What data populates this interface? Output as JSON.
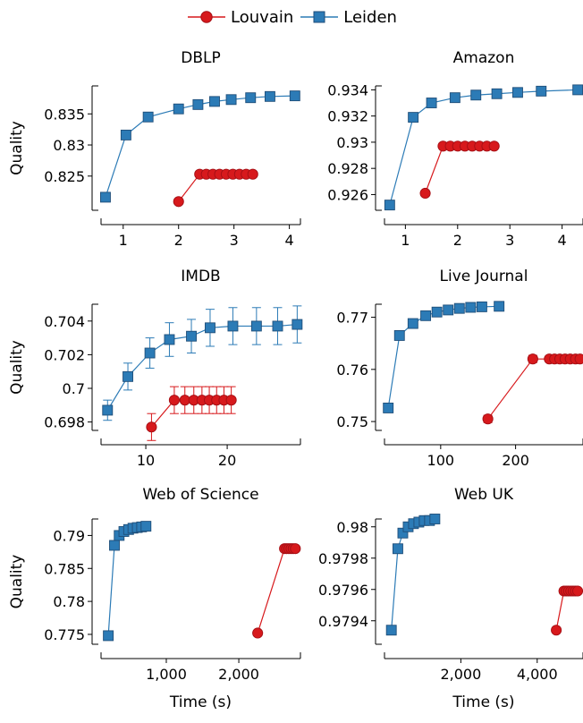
{
  "legend": [
    {
      "name": "Louvain",
      "color": "#d7191c",
      "marker": "circle"
    },
    {
      "name": "Leiden",
      "color": "#2c7bb6",
      "marker": "square"
    }
  ],
  "chart_data": [
    {
      "type": "line",
      "title": "DBLP",
      "ylabel": "Quality",
      "xlabel": "",
      "xlim": [
        0.6,
        4.2
      ],
      "ylim": [
        0.8195,
        0.8395
      ],
      "xticks": [
        1,
        2,
        3,
        4
      ],
      "xtick_labels": [
        "1",
        "2",
        "3",
        "4"
      ],
      "yticks": [
        0.825,
        0.83,
        0.835
      ],
      "ytick_labels": [
        "0.825",
        "0.83",
        "0.835"
      ],
      "series": [
        {
          "name": "Louvain",
          "x": [
            2.0,
            2.38,
            2.5,
            2.62,
            2.74,
            2.86,
            2.98,
            3.1,
            3.22,
            3.34
          ],
          "y": [
            0.8209,
            0.8253,
            0.8253,
            0.8253,
            0.8253,
            0.8253,
            0.8253,
            0.8253,
            0.8253,
            0.8253
          ]
        },
        {
          "name": "Leiden",
          "x": [
            0.68,
            1.05,
            1.45,
            2.0,
            2.35,
            2.65,
            2.95,
            3.3,
            3.65,
            4.1
          ],
          "y": [
            0.8216,
            0.8316,
            0.8345,
            0.8358,
            0.8365,
            0.837,
            0.8373,
            0.8376,
            0.8378,
            0.8379
          ]
        }
      ]
    },
    {
      "type": "line",
      "title": "Amazon",
      "ylabel": "",
      "xlabel": "",
      "xlim": [
        0.6,
        4.4
      ],
      "ylim": [
        0.9248,
        0.9343
      ],
      "xticks": [
        1,
        2,
        3,
        4
      ],
      "xtick_labels": [
        "1",
        "2",
        "3",
        "4"
      ],
      "yticks": [
        0.926,
        0.928,
        0.93,
        0.932,
        0.934
      ],
      "ytick_labels": [
        "0.926",
        "0.928",
        "0.93",
        "0.932",
        "0.934"
      ],
      "series": [
        {
          "name": "Louvain",
          "x": [
            1.38,
            1.72,
            1.86,
            2.0,
            2.14,
            2.28,
            2.42,
            2.56,
            2.7
          ],
          "y": [
            0.9261,
            0.9297,
            0.9297,
            0.9297,
            0.9297,
            0.9297,
            0.9297,
            0.9297,
            0.9297
          ]
        },
        {
          "name": "Leiden",
          "x": [
            0.7,
            1.15,
            1.5,
            1.95,
            2.35,
            2.75,
            3.15,
            3.6,
            4.3
          ],
          "y": [
            0.9252,
            0.9319,
            0.933,
            0.9334,
            0.9336,
            0.9337,
            0.9338,
            0.9339,
            0.934
          ]
        }
      ]
    },
    {
      "type": "line",
      "title": "IMDB",
      "ylabel": "Quality",
      "xlabel": "",
      "xlim": [
        4.5,
        29.0
      ],
      "ylim": [
        0.6975,
        0.705
      ],
      "xticks": [
        10,
        20
      ],
      "xtick_labels": [
        "10",
        "20"
      ],
      "yticks": [
        0.698,
        0.7,
        0.702,
        0.704
      ],
      "ytick_labels": [
        "0.698",
        "0.7",
        "0.702",
        "0.704"
      ],
      "series": [
        {
          "name": "Louvain",
          "x": [
            10.7,
            13.5,
            14.8,
            15.9,
            16.9,
            17.8,
            18.7,
            19.6,
            20.5
          ],
          "y": [
            0.6977,
            0.6993,
            0.6993,
            0.6993,
            0.6993,
            0.6993,
            0.6993,
            0.6993,
            0.6993
          ],
          "err": [
            0.0008,
            0.0008,
            0.0008,
            0.0008,
            0.0008,
            0.0008,
            0.0008,
            0.0008,
            0.0008
          ]
        },
        {
          "name": "Leiden",
          "x": [
            5.3,
            7.8,
            10.5,
            12.9,
            15.6,
            17.9,
            20.7,
            23.6,
            26.2,
            28.6
          ],
          "y": [
            0.6987,
            0.7007,
            0.7021,
            0.7029,
            0.7031,
            0.7036,
            0.7037,
            0.7037,
            0.7037,
            0.7038
          ],
          "err": [
            0.0006,
            0.0008,
            0.0009,
            0.001,
            0.001,
            0.0011,
            0.0011,
            0.0011,
            0.0011,
            0.0011
          ]
        }
      ]
    },
    {
      "type": "line",
      "title": "Live Journal",
      "ylabel": "",
      "xlabel": "",
      "xlim": [
        25,
        290
      ],
      "ylim": [
        0.7483,
        0.7725
      ],
      "xticks": [
        100,
        200
      ],
      "xtick_labels": [
        "100",
        "200"
      ],
      "yticks": [
        0.75,
        0.76,
        0.77
      ],
      "ytick_labels": [
        "0.75",
        "0.76",
        "0.77"
      ],
      "series": [
        {
          "name": "Louvain",
          "x": [
            163,
            223,
            245,
            252,
            259,
            266,
            273,
            280,
            286
          ],
          "y": [
            0.7505,
            0.762,
            0.762,
            0.762,
            0.762,
            0.762,
            0.762,
            0.762,
            0.762
          ],
          "err": [
            0.0007,
            0.0007,
            0.0005,
            0.0005,
            0.0005,
            0.0005,
            0.0005,
            0.0005,
            0.0005
          ]
        },
        {
          "name": "Leiden",
          "x": [
            30,
            45,
            63,
            80,
            95,
            110,
            125,
            140,
            155,
            178
          ],
          "y": [
            0.7526,
            0.7665,
            0.7688,
            0.7703,
            0.771,
            0.7714,
            0.7717,
            0.7719,
            0.772,
            0.7721
          ]
        }
      ]
    },
    {
      "type": "line",
      "title": "Web of Science",
      "ylabel": "Quality",
      "xlabel": "Time (s)",
      "xlim": [
        100,
        2850
      ],
      "ylim": [
        0.7735,
        0.7925
      ],
      "xticks": [
        1000,
        2000
      ],
      "xtick_labels": [
        "1,000",
        "2,000"
      ],
      "yticks": [
        0.775,
        0.78,
        0.785,
        0.79
      ],
      "ytick_labels": [
        "0.775",
        "0.78",
        "0.785",
        "0.79"
      ],
      "series": [
        {
          "name": "Louvain",
          "x": [
            2260,
            2630,
            2660,
            2690,
            2720,
            2750,
            2780
          ],
          "y": [
            0.7752,
            0.788,
            0.788,
            0.788,
            0.788,
            0.788,
            0.788
          ]
        },
        {
          "name": "Leiden",
          "x": [
            200,
            285,
            350,
            415,
            480,
            540,
            600,
            660,
            720
          ],
          "y": [
            0.7748,
            0.7885,
            0.79,
            0.7906,
            0.7909,
            0.7911,
            0.7912,
            0.7913,
            0.7914
          ]
        }
      ]
    },
    {
      "type": "line",
      "title": "Web UK",
      "ylabel": "",
      "xlabel": "Time (s)",
      "xlim": [
        0,
        5200
      ],
      "ylim": [
        0.97925,
        0.98005
      ],
      "xticks": [
        2000,
        4000
      ],
      "xtick_labels": [
        "2,000",
        "4,000"
      ],
      "yticks": [
        0.9794,
        0.9796,
        0.9798,
        0.98
      ],
      "ytick_labels": [
        "0.9794",
        "0.9796",
        "0.9798",
        "0.98"
      ],
      "series": [
        {
          "name": "Louvain",
          "x": [
            4500,
            4700,
            4760,
            4820,
            4880,
            4940,
            5000,
            5060
          ],
          "y": [
            0.97934,
            0.97959,
            0.97959,
            0.97959,
            0.97959,
            0.97959,
            0.97959,
            0.97959
          ]
        },
        {
          "name": "Leiden",
          "x": [
            180,
            350,
            480,
            620,
            760,
            900,
            1040,
            1180,
            1320
          ],
          "y": [
            0.97934,
            0.97986,
            0.97996,
            0.98,
            0.98002,
            0.98003,
            0.98004,
            0.98004,
            0.98005
          ]
        }
      ]
    }
  ]
}
